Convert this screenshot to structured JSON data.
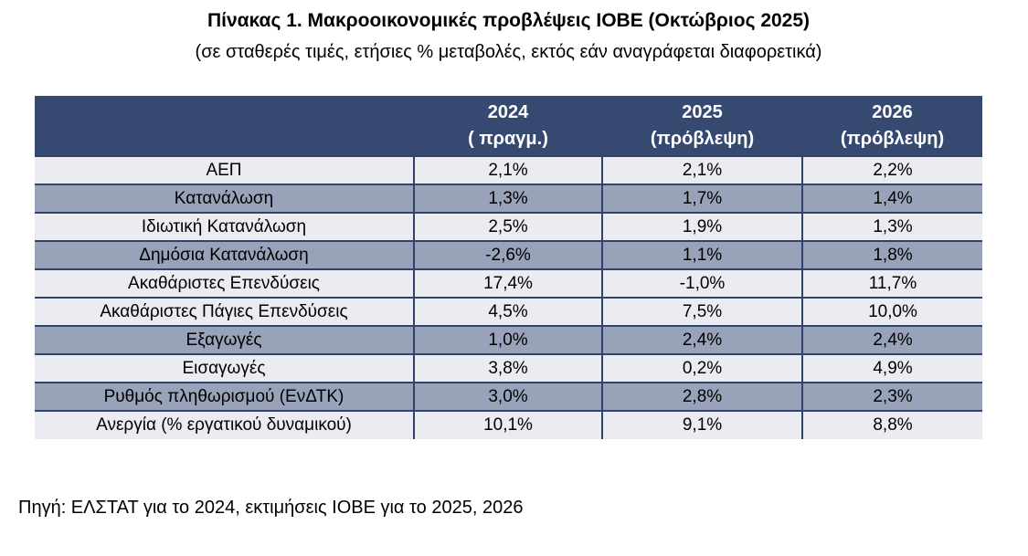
{
  "page": {
    "title": "Πίνακας 1. Μακροοικονομικές προβλέψεις ΙΟΒΕ (Οκτώβριος 2025)",
    "subtitle": "(σε σταθερές τιμές, ετήσιες % μεταβολές, εκτός εάν αναγράφεται διαφορετικά)",
    "source_note": "Πηγή: ΕΛΣΤΑΤ για το 2024, εκτιμήσεις ΙΟΒΕ για το 2025, 2026"
  },
  "colors": {
    "header_bg": "#364971",
    "header_text": "#FFFFFF",
    "row_light": "#EAECF2",
    "row_dark": "#98A3B9",
    "border": "#31426B",
    "body_text": "#000000"
  },
  "table": {
    "columns": [
      {
        "year": "",
        "qualifier": ""
      },
      {
        "year": "2024",
        "qualifier": "( πραγμ.)"
      },
      {
        "year": "2025",
        "qualifier": "(πρόβλεψη)"
      },
      {
        "year": "2026",
        "qualifier": "(πρόβλεψη)"
      }
    ],
    "rows": [
      {
        "label": "ΑΕΠ",
        "values": [
          "2,1%",
          "2,1%",
          "2,2%"
        ],
        "shade": "light"
      },
      {
        "label": "Κατανάλωση",
        "values": [
          "1,3%",
          "1,7%",
          "1,4%"
        ],
        "shade": "dark"
      },
      {
        "label": "Ιδιωτική Κατανάλωση",
        "values": [
          "2,5%",
          "1,9%",
          "1,3%"
        ],
        "shade": "light"
      },
      {
        "label": "Δημόσια Κατανάλωση",
        "values": [
          "-2,6%",
          "1,1%",
          "1,8%"
        ],
        "shade": "dark"
      },
      {
        "label": "Ακαθάριστες Επενδύσεις",
        "values": [
          "17,4%",
          "-1,0%",
          "11,7%"
        ],
        "shade": "light"
      },
      {
        "label": "Ακαθάριστες Πάγιες Επενδύσεις",
        "values": [
          "4,5%",
          "7,5%",
          "10,0%"
        ],
        "shade": "light"
      },
      {
        "label": "Εξαγωγές",
        "values": [
          "1,0%",
          "2,4%",
          "2,4%"
        ],
        "shade": "dark"
      },
      {
        "label": "Εισαγωγές",
        "values": [
          "3,8%",
          "0,2%",
          "4,9%"
        ],
        "shade": "light"
      },
      {
        "label": "Ρυθμός πληθωρισμού (ΕνΔΤΚ)",
        "values": [
          "3,0%",
          "2,8%",
          "2,3%"
        ],
        "shade": "dark"
      },
      {
        "label": "Ανεργία (% εργατικού δυναμικού)",
        "values": [
          "10,1%",
          "9,1%",
          "8,8%"
        ],
        "shade": "light"
      }
    ]
  },
  "chart_data": {
    "type": "table",
    "title": "Πίνακας 1. Μακροοικονομικές προβλέψεις ΙΟΒΕ (Οκτώβριος 2025)",
    "columns": [
      "",
      "2024 ( πραγμ.)",
      "2025 (πρόβλεψη)",
      "2026 (πρόβλεψη)"
    ],
    "rows": [
      [
        "ΑΕΠ",
        "2,1%",
        "2,1%",
        "2,2%"
      ],
      [
        "Κατανάλωση",
        "1,3%",
        "1,7%",
        "1,4%"
      ],
      [
        "Ιδιωτική Κατανάλωση",
        "2,5%",
        "1,9%",
        "1,3%"
      ],
      [
        "Δημόσια Κατανάλωση",
        "-2,6%",
        "1,1%",
        "1,8%"
      ],
      [
        "Ακαθάριστες Επενδύσεις",
        "17,4%",
        "-1,0%",
        "11,7%"
      ],
      [
        "Ακαθάριστες Πάγιες Επενδύσεις",
        "4,5%",
        "7,5%",
        "10,0%"
      ],
      [
        "Εξαγωγές",
        "1,0%",
        "2,4%",
        "2,4%"
      ],
      [
        "Εισαγωγές",
        "3,8%",
        "0,2%",
        "4,9%"
      ],
      [
        "Ρυθμός πληθωρισμού (ΕνΔΤΚ)",
        "3,0%",
        "2,8%",
        "2,3%"
      ],
      [
        "Ανεργία (% εργατικού δυναμικού)",
        "10,1%",
        "9,1%",
        "8,8%"
      ]
    ]
  }
}
